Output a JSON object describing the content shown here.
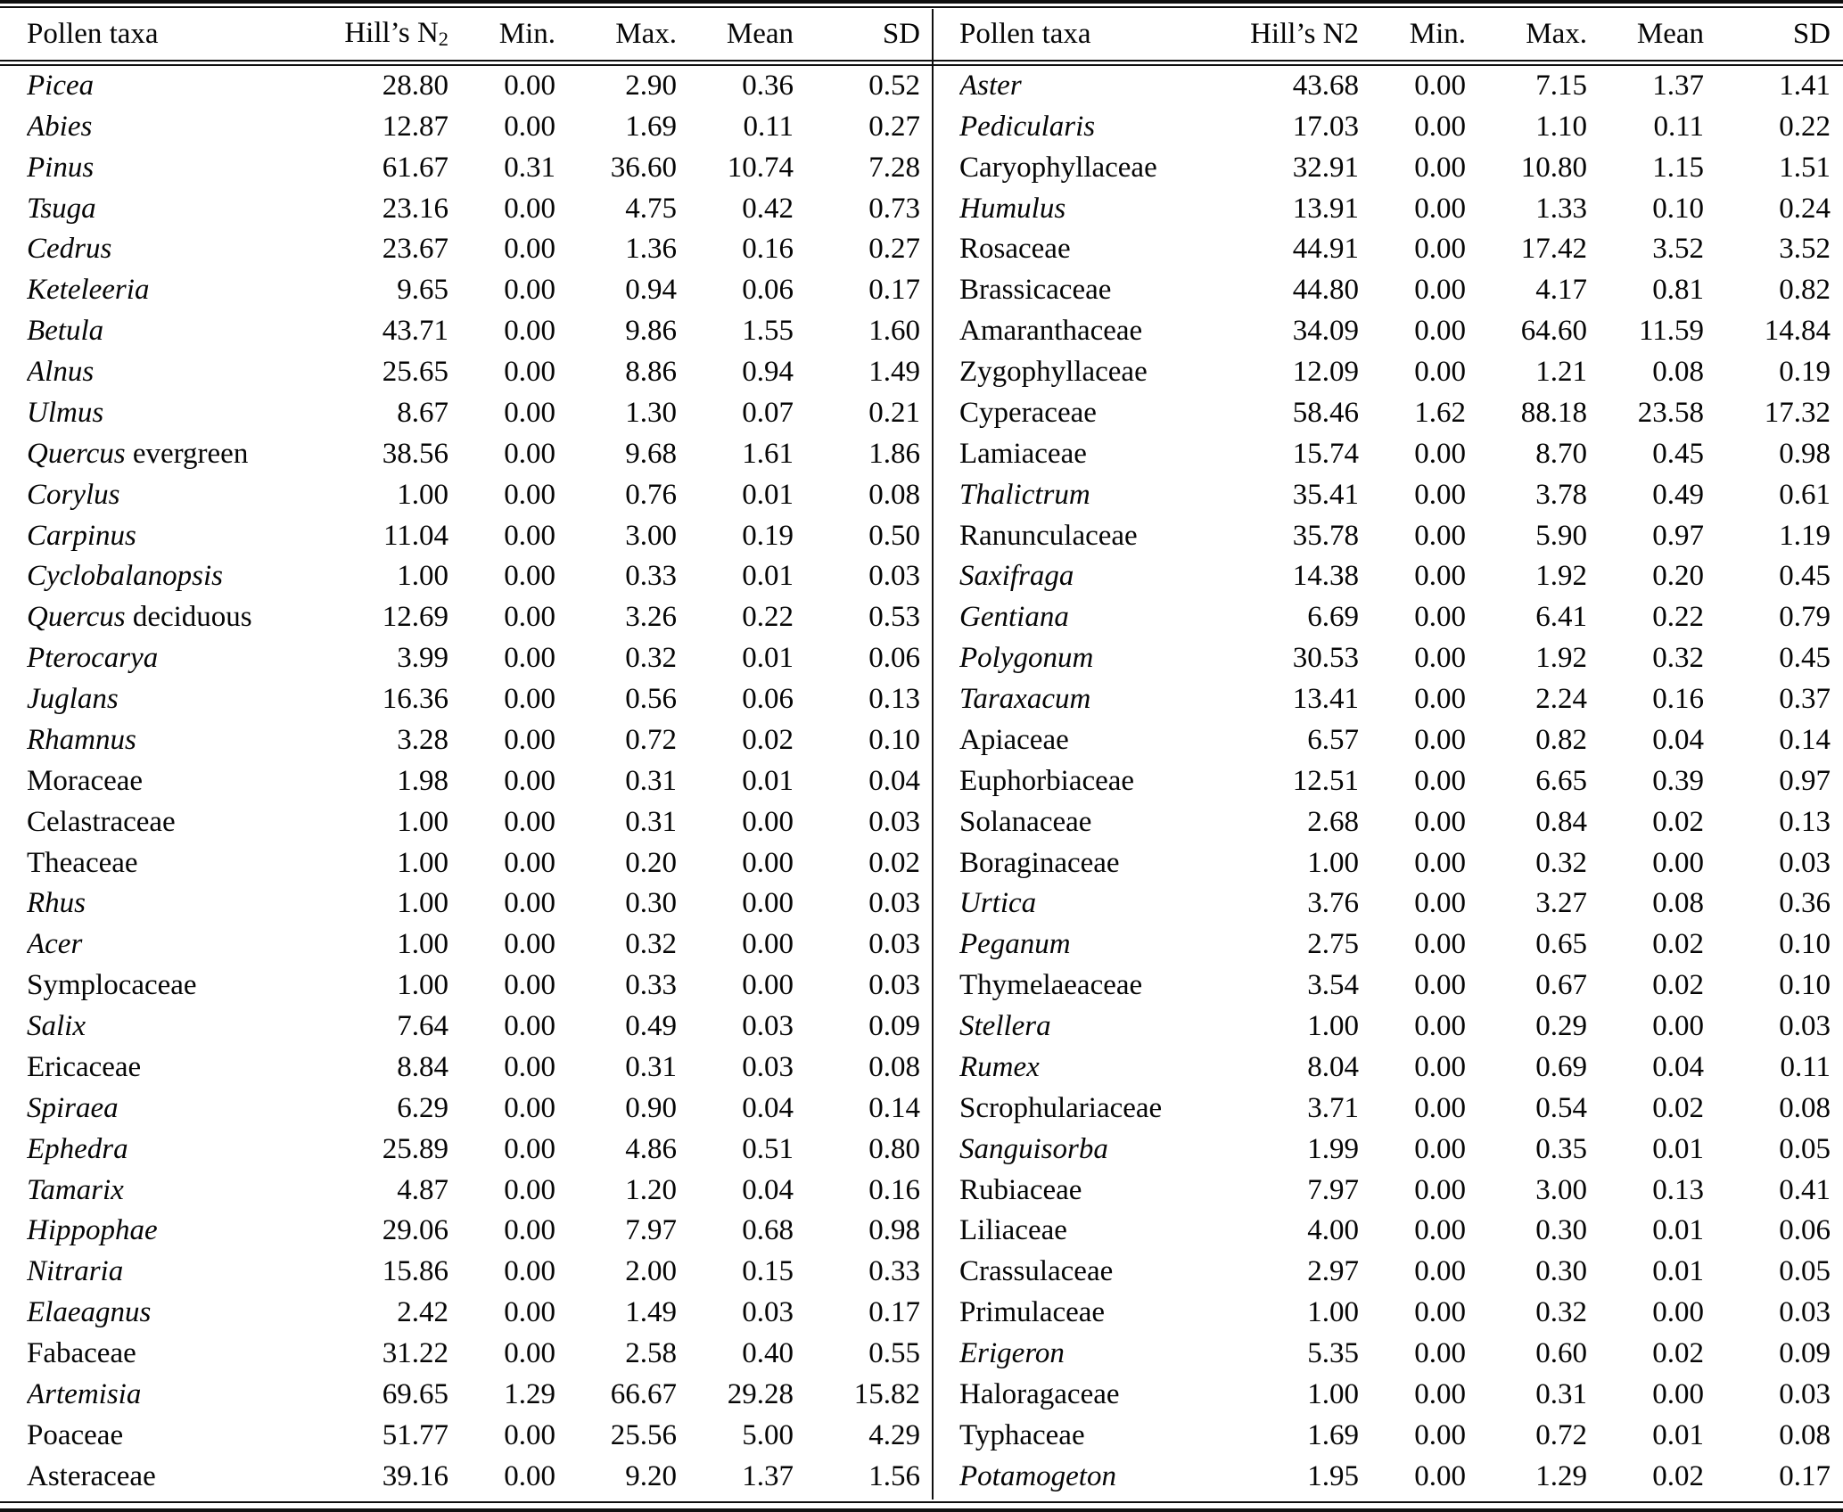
{
  "table": {
    "left": {
      "header": {
        "taxa": "Pollen taxa",
        "hills_text": "Hill’s N",
        "hills_sub": "2",
        "min": "Min.",
        "max": "Max.",
        "mean": "Mean",
        "sd": "SD"
      },
      "rows": [
        {
          "italic": "Picea",
          "roman": "",
          "values": [
            "28.80",
            "0.00",
            "2.90",
            "0.36",
            "0.52"
          ]
        },
        {
          "italic": "Abies",
          "roman": "",
          "values": [
            "12.87",
            "0.00",
            "1.69",
            "0.11",
            "0.27"
          ]
        },
        {
          "italic": "Pinus",
          "roman": "",
          "values": [
            "61.67",
            "0.31",
            "36.60",
            "10.74",
            "7.28"
          ]
        },
        {
          "italic": "Tsuga",
          "roman": "",
          "values": [
            "23.16",
            "0.00",
            "4.75",
            "0.42",
            "0.73"
          ]
        },
        {
          "italic": "Cedrus",
          "roman": "",
          "values": [
            "23.67",
            "0.00",
            "1.36",
            "0.16",
            "0.27"
          ]
        },
        {
          "italic": "Keteleeria",
          "roman": "",
          "values": [
            "9.65",
            "0.00",
            "0.94",
            "0.06",
            "0.17"
          ]
        },
        {
          "italic": "Betula",
          "roman": "",
          "values": [
            "43.71",
            "0.00",
            "9.86",
            "1.55",
            "1.60"
          ]
        },
        {
          "italic": "Alnus",
          "roman": "",
          "values": [
            "25.65",
            "0.00",
            "8.86",
            "0.94",
            "1.49"
          ]
        },
        {
          "italic": "Ulmus",
          "roman": "",
          "values": [
            "8.67",
            "0.00",
            "1.30",
            "0.07",
            "0.21"
          ]
        },
        {
          "italic": "Quercus",
          "roman": " evergreen",
          "values": [
            "38.56",
            "0.00",
            "9.68",
            "1.61",
            "1.86"
          ]
        },
        {
          "italic": "Corylus",
          "roman": "",
          "values": [
            "1.00",
            "0.00",
            "0.76",
            "0.01",
            "0.08"
          ]
        },
        {
          "italic": "Carpinus",
          "roman": "",
          "values": [
            "11.04",
            "0.00",
            "3.00",
            "0.19",
            "0.50"
          ]
        },
        {
          "italic": "Cyclobalanopsis",
          "roman": "",
          "values": [
            "1.00",
            "0.00",
            "0.33",
            "0.01",
            "0.03"
          ]
        },
        {
          "italic": "Quercus",
          "roman": " deciduous",
          "values": [
            "12.69",
            "0.00",
            "3.26",
            "0.22",
            "0.53"
          ]
        },
        {
          "italic": "Pterocarya",
          "roman": "",
          "values": [
            "3.99",
            "0.00",
            "0.32",
            "0.01",
            "0.06"
          ]
        },
        {
          "italic": "Juglans",
          "roman": "",
          "values": [
            "16.36",
            "0.00",
            "0.56",
            "0.06",
            "0.13"
          ]
        },
        {
          "italic": "Rhamnus",
          "roman": "",
          "values": [
            "3.28",
            "0.00",
            "0.72",
            "0.02",
            "0.10"
          ]
        },
        {
          "italic": "",
          "roman": "Moraceae",
          "values": [
            "1.98",
            "0.00",
            "0.31",
            "0.01",
            "0.04"
          ]
        },
        {
          "italic": "",
          "roman": "Celastraceae",
          "values": [
            "1.00",
            "0.00",
            "0.31",
            "0.00",
            "0.03"
          ]
        },
        {
          "italic": "",
          "roman": "Theaceae",
          "values": [
            "1.00",
            "0.00",
            "0.20",
            "0.00",
            "0.02"
          ]
        },
        {
          "italic": "Rhus",
          "roman": "",
          "values": [
            "1.00",
            "0.00",
            "0.30",
            "0.00",
            "0.03"
          ]
        },
        {
          "italic": "Acer",
          "roman": "",
          "values": [
            "1.00",
            "0.00",
            "0.32",
            "0.00",
            "0.03"
          ]
        },
        {
          "italic": "",
          "roman": "Symplocaceae",
          "values": [
            "1.00",
            "0.00",
            "0.33",
            "0.00",
            "0.03"
          ]
        },
        {
          "italic": "Salix",
          "roman": "",
          "values": [
            "7.64",
            "0.00",
            "0.49",
            "0.03",
            "0.09"
          ]
        },
        {
          "italic": "",
          "roman": "Ericaceae",
          "values": [
            "8.84",
            "0.00",
            "0.31",
            "0.03",
            "0.08"
          ]
        },
        {
          "italic": "Spiraea",
          "roman": "",
          "values": [
            "6.29",
            "0.00",
            "0.90",
            "0.04",
            "0.14"
          ]
        },
        {
          "italic": "Ephedra",
          "roman": "",
          "values": [
            "25.89",
            "0.00",
            "4.86",
            "0.51",
            "0.80"
          ]
        },
        {
          "italic": "Tamarix",
          "roman": "",
          "values": [
            "4.87",
            "0.00",
            "1.20",
            "0.04",
            "0.16"
          ]
        },
        {
          "italic": "Hippophae",
          "roman": "",
          "values": [
            "29.06",
            "0.00",
            "7.97",
            "0.68",
            "0.98"
          ]
        },
        {
          "italic": "Nitraria",
          "roman": "",
          "values": [
            "15.86",
            "0.00",
            "2.00",
            "0.15",
            "0.33"
          ]
        },
        {
          "italic": "Elaeagnus",
          "roman": "",
          "values": [
            "2.42",
            "0.00",
            "1.49",
            "0.03",
            "0.17"
          ]
        },
        {
          "italic": "",
          "roman": "Fabaceae",
          "values": [
            "31.22",
            "0.00",
            "2.58",
            "0.40",
            "0.55"
          ]
        },
        {
          "italic": "Artemisia",
          "roman": "",
          "values": [
            "69.65",
            "1.29",
            "66.67",
            "29.28",
            "15.82"
          ]
        },
        {
          "italic": "",
          "roman": "Poaceae",
          "values": [
            "51.77",
            "0.00",
            "25.56",
            "5.00",
            "4.29"
          ]
        },
        {
          "italic": "",
          "roman": "Asteraceae",
          "values": [
            "39.16",
            "0.00",
            "9.20",
            "1.37",
            "1.56"
          ]
        }
      ]
    },
    "right": {
      "header": {
        "taxa": "Pollen taxa",
        "hills": "Hill’s N2",
        "min": "Min.",
        "max": "Max.",
        "mean": "Mean",
        "sd": "SD"
      },
      "rows": [
        {
          "italic": "Aster",
          "roman": "",
          "values": [
            "43.68",
            "0.00",
            "7.15",
            "1.37",
            "1.41"
          ]
        },
        {
          "italic": "Pedicularis",
          "roman": "",
          "values": [
            "17.03",
            "0.00",
            "1.10",
            "0.11",
            "0.22"
          ]
        },
        {
          "italic": "",
          "roman": "Caryophyllaceae",
          "values": [
            "32.91",
            "0.00",
            "10.80",
            "1.15",
            "1.51"
          ]
        },
        {
          "italic": "Humulus",
          "roman": "",
          "values": [
            "13.91",
            "0.00",
            "1.33",
            "0.10",
            "0.24"
          ]
        },
        {
          "italic": "",
          "roman": "Rosaceae",
          "values": [
            "44.91",
            "0.00",
            "17.42",
            "3.52",
            "3.52"
          ]
        },
        {
          "italic": "",
          "roman": "Brassicaceae",
          "values": [
            "44.80",
            "0.00",
            "4.17",
            "0.81",
            "0.82"
          ]
        },
        {
          "italic": "",
          "roman": "Amaranthaceae",
          "values": [
            "34.09",
            "0.00",
            "64.60",
            "11.59",
            "14.84"
          ]
        },
        {
          "italic": "",
          "roman": "Zygophyllaceae",
          "values": [
            "12.09",
            "0.00",
            "1.21",
            "0.08",
            "0.19"
          ]
        },
        {
          "italic": "",
          "roman": "Cyperaceae",
          "values": [
            "58.46",
            "1.62",
            "88.18",
            "23.58",
            "17.32"
          ]
        },
        {
          "italic": "",
          "roman": "Lamiaceae",
          "values": [
            "15.74",
            "0.00",
            "8.70",
            "0.45",
            "0.98"
          ]
        },
        {
          "italic": "Thalictrum",
          "roman": "",
          "values": [
            "35.41",
            "0.00",
            "3.78",
            "0.49",
            "0.61"
          ]
        },
        {
          "italic": "",
          "roman": "Ranunculaceae",
          "values": [
            "35.78",
            "0.00",
            "5.90",
            "0.97",
            "1.19"
          ]
        },
        {
          "italic": "Saxifraga",
          "roman": "",
          "values": [
            "14.38",
            "0.00",
            "1.92",
            "0.20",
            "0.45"
          ]
        },
        {
          "italic": "Gentiana",
          "roman": "",
          "values": [
            "6.69",
            "0.00",
            "6.41",
            "0.22",
            "0.79"
          ]
        },
        {
          "italic": "Polygonum",
          "roman": "",
          "values": [
            "30.53",
            "0.00",
            "1.92",
            "0.32",
            "0.45"
          ]
        },
        {
          "italic": "Taraxacum",
          "roman": "",
          "values": [
            "13.41",
            "0.00",
            "2.24",
            "0.16",
            "0.37"
          ]
        },
        {
          "italic": "",
          "roman": "Apiaceae",
          "values": [
            "6.57",
            "0.00",
            "0.82",
            "0.04",
            "0.14"
          ]
        },
        {
          "italic": "",
          "roman": "Euphorbiaceae",
          "values": [
            "12.51",
            "0.00",
            "6.65",
            "0.39",
            "0.97"
          ]
        },
        {
          "italic": "",
          "roman": "Solanaceae",
          "values": [
            "2.68",
            "0.00",
            "0.84",
            "0.02",
            "0.13"
          ]
        },
        {
          "italic": "",
          "roman": "Boraginaceae",
          "values": [
            "1.00",
            "0.00",
            "0.32",
            "0.00",
            "0.03"
          ]
        },
        {
          "italic": "Urtica",
          "roman": "",
          "values": [
            "3.76",
            "0.00",
            "3.27",
            "0.08",
            "0.36"
          ]
        },
        {
          "italic": "Peganum",
          "roman": "",
          "values": [
            "2.75",
            "0.00",
            "0.65",
            "0.02",
            "0.10"
          ]
        },
        {
          "italic": "",
          "roman": "Thymelaeaceae",
          "values": [
            "3.54",
            "0.00",
            "0.67",
            "0.02",
            "0.10"
          ]
        },
        {
          "italic": "Stellera",
          "roman": "",
          "values": [
            "1.00",
            "0.00",
            "0.29",
            "0.00",
            "0.03"
          ]
        },
        {
          "italic": "Rumex",
          "roman": "",
          "values": [
            "8.04",
            "0.00",
            "0.69",
            "0.04",
            "0.11"
          ]
        },
        {
          "italic": "",
          "roman": "Scrophulariaceae",
          "values": [
            "3.71",
            "0.00",
            "0.54",
            "0.02",
            "0.08"
          ]
        },
        {
          "italic": "Sanguisorba",
          "roman": "",
          "values": [
            "1.99",
            "0.00",
            "0.35",
            "0.01",
            "0.05"
          ]
        },
        {
          "italic": "",
          "roman": "Rubiaceae",
          "values": [
            "7.97",
            "0.00",
            "3.00",
            "0.13",
            "0.41"
          ]
        },
        {
          "italic": "",
          "roman": "Liliaceae",
          "values": [
            "4.00",
            "0.00",
            "0.30",
            "0.01",
            "0.06"
          ]
        },
        {
          "italic": "",
          "roman": "Crassulaceae",
          "values": [
            "2.97",
            "0.00",
            "0.30",
            "0.01",
            "0.05"
          ]
        },
        {
          "italic": "",
          "roman": "Primulaceae",
          "values": [
            "1.00",
            "0.00",
            "0.32",
            "0.00",
            "0.03"
          ]
        },
        {
          "italic": "Erigeron",
          "roman": "",
          "values": [
            "5.35",
            "0.00",
            "0.60",
            "0.02",
            "0.09"
          ]
        },
        {
          "italic": "",
          "roman": "Haloragaceae",
          "values": [
            "1.00",
            "0.00",
            "0.31",
            "0.00",
            "0.03"
          ]
        },
        {
          "italic": "",
          "roman": "Typhaceae",
          "values": [
            "1.69",
            "0.00",
            "0.72",
            "0.01",
            "0.08"
          ]
        },
        {
          "italic": "Potamogeton",
          "roman": "",
          "values": [
            "1.95",
            "0.00",
            "1.29",
            "0.02",
            "0.17"
          ]
        }
      ]
    }
  }
}
